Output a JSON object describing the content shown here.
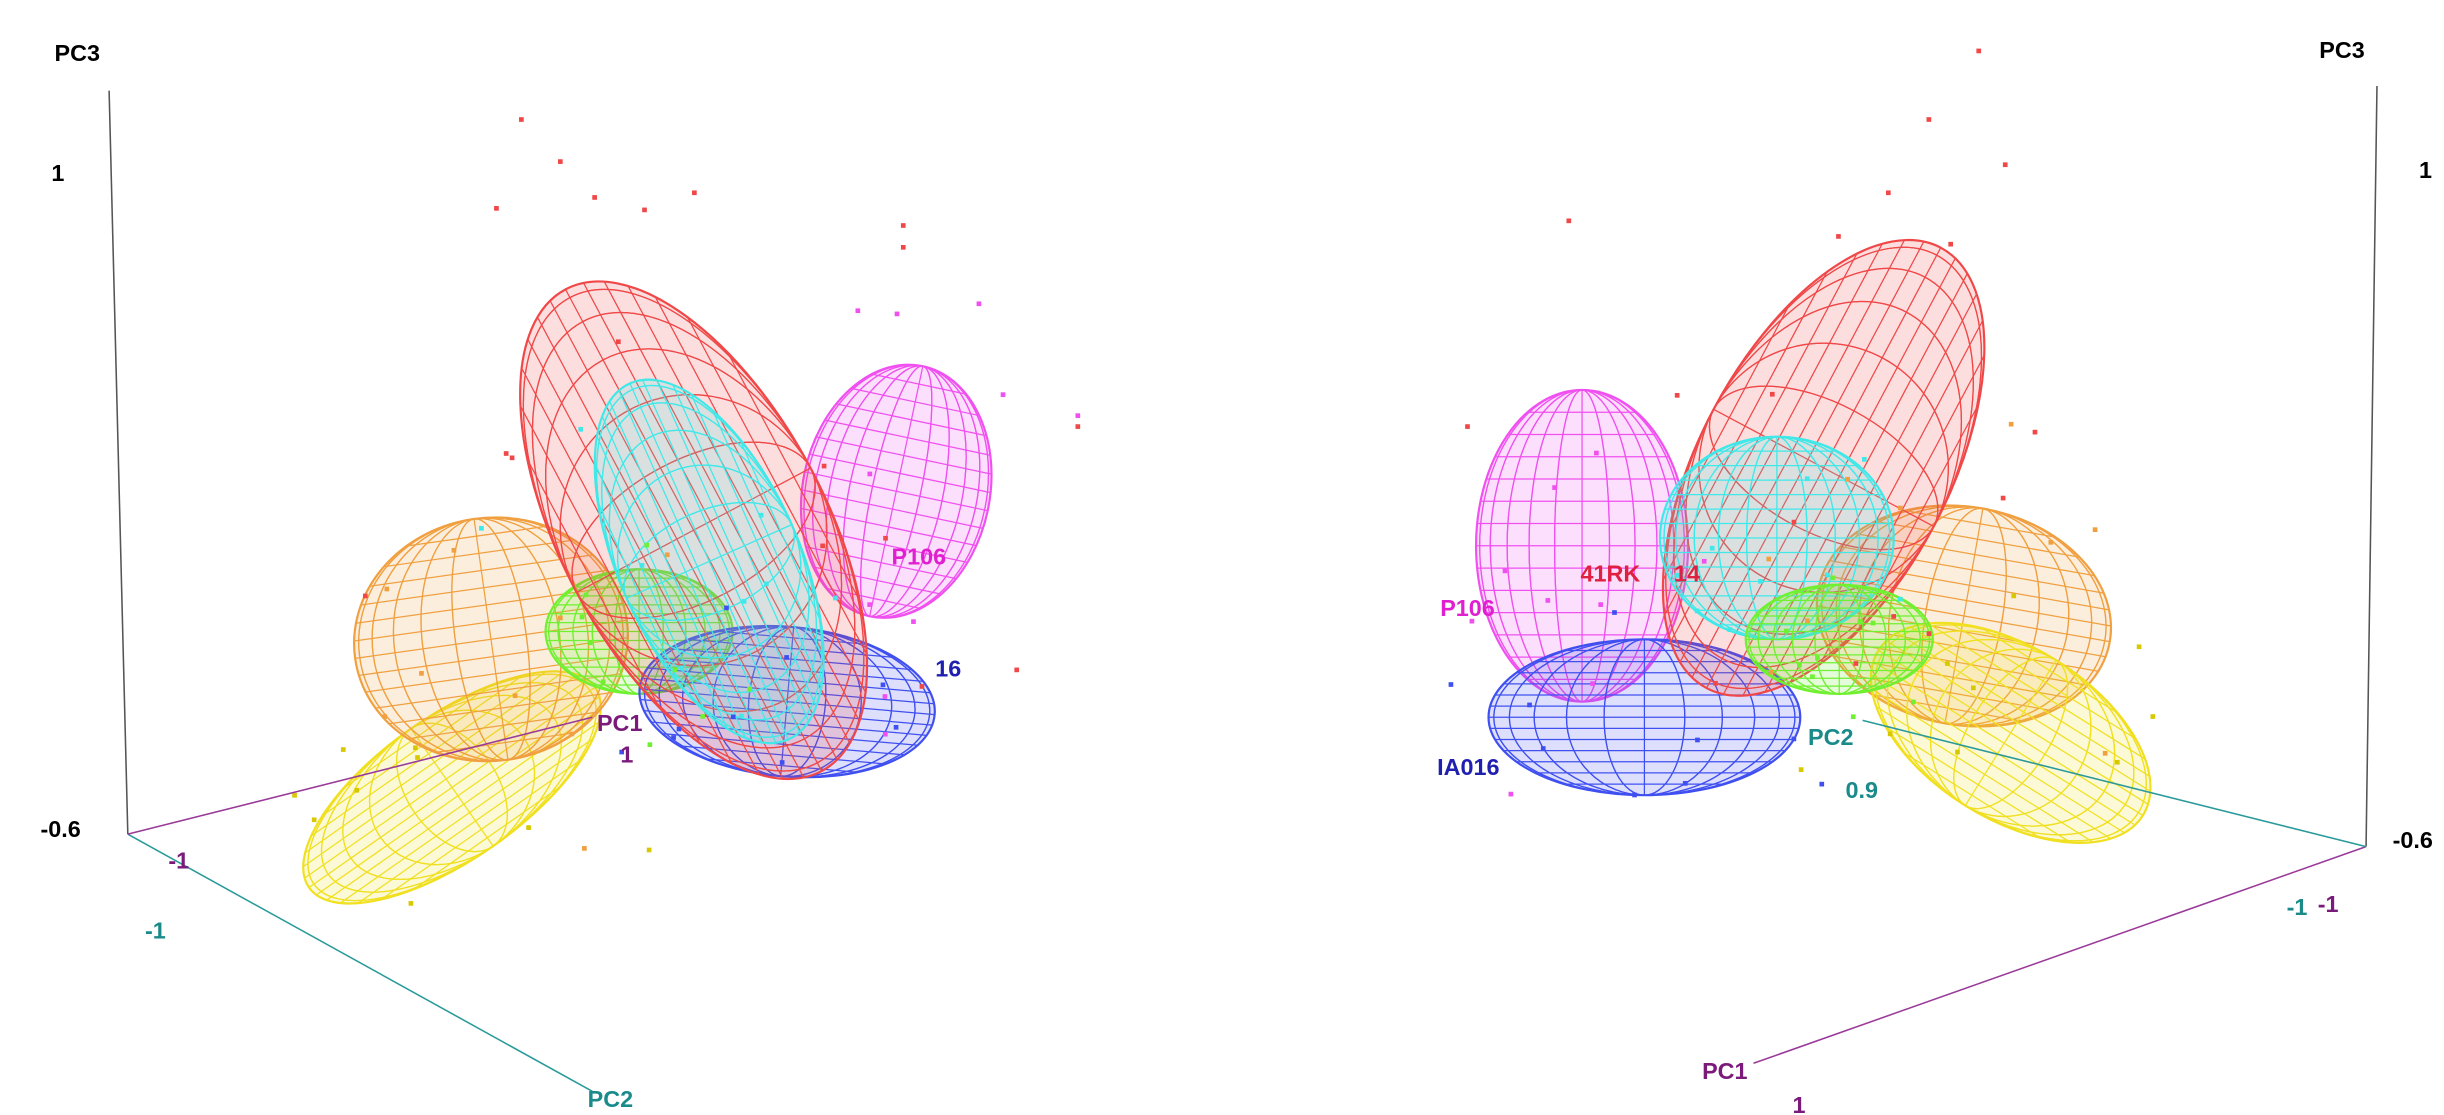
{
  "views": [
    {
      "axes": {
        "pc3": {
          "label": "PC3",
          "top": "1",
          "bottom": "-0.6"
        },
        "pc1": {
          "label": "PC1",
          "start": "-1",
          "end": "1"
        },
        "pc2": {
          "label": "PC2",
          "start": "-1"
        }
      },
      "groups": [
        "P106",
        "16"
      ]
    },
    {
      "axes": {
        "pc3": {
          "label": "PC3",
          "top": "1",
          "bottom": "-0.6"
        },
        "pc1": {
          "label": "PC1",
          "start": "-1",
          "end": "1"
        },
        "pc2": {
          "label": "PC2",
          "start": "-1",
          "end": "0.9"
        }
      },
      "groups": [
        "P106",
        "IA016",
        "41RK",
        "14"
      ]
    }
  ]
}
